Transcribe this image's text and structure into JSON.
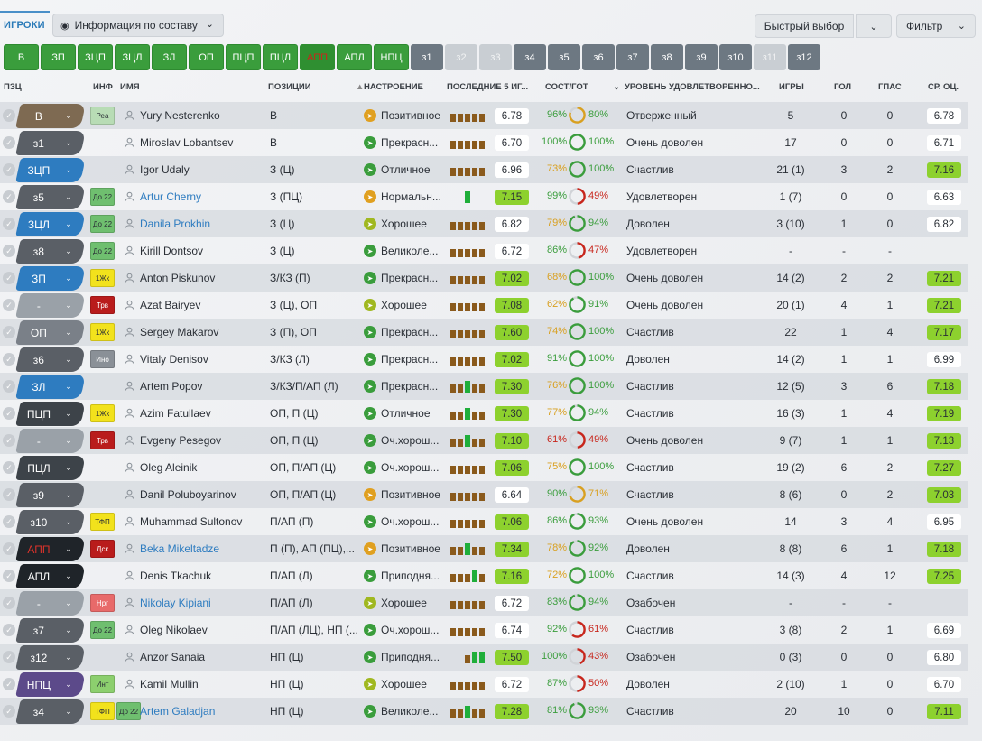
{
  "tabs": {
    "players": "ИГРОКИ",
    "view": "Информация по составу"
  },
  "buttons": {
    "quick_pick": "Быстрый выбор",
    "filter": "Фильтр"
  },
  "chips": [
    "В",
    "ЗП",
    "ЗЦП",
    "ЗЦЛ",
    "ЗЛ",
    "ОП",
    "ПЦП",
    "ПЦЛ",
    "АПП",
    "АПЛ",
    "НПЦ",
    "з1",
    "з2",
    "з3",
    "з4",
    "з5",
    "з6",
    "з7",
    "з8",
    "з9",
    "з10",
    "з11",
    "з12"
  ],
  "chip_styles": [
    "green",
    "green",
    "green",
    "green",
    "green",
    "green",
    "green",
    "green",
    "red",
    "green",
    "green",
    "gray",
    "light",
    "light",
    "gray",
    "gray",
    "gray",
    "gray",
    "gray",
    "gray",
    "gray",
    "light",
    "gray"
  ],
  "headers": {
    "pzc": "ПЗЦ",
    "inf": "ИНФ",
    "name": "ИМЯ",
    "positions": "ПОЗИЦИИ",
    "mood": "НАСТРОЕНИЕ",
    "last5": "ПОСЛЕДНИЕ 5 ИГ...",
    "condition": "СОСТ/ГОТ",
    "satisfaction": "УРОВЕНЬ УДОВЛЕТВОРЕННО...",
    "games": "ИГРЫ",
    "goals": "ГОЛ",
    "assists": "ГПАС",
    "avg": "СР. ОЦ."
  },
  "players": [
    {
      "slot": "В",
      "slot_color": "#7e6a52",
      "inf": "Реа",
      "inf_color": "#b8dcb5",
      "name": "Yury Nesterenko",
      "link": false,
      "positions": "В",
      "mood": "Позитивное",
      "mood_color": "#e0a020",
      "form": "6.78",
      "form_bg": "#ffffff",
      "form_bars": [
        3,
        3,
        3,
        3,
        3
      ],
      "cond": "96%",
      "cond_color": "#3a9d3c",
      "fit": "80%",
      "fit_color": "#3a9d3c",
      "fit_pct": 0.8,
      "sat": "Отверженный",
      "games": "5",
      "goals": "0",
      "ast": "0",
      "avg": "6.78",
      "avg_bg": "#ffffff"
    },
    {
      "slot": "з1",
      "slot_color": "#5a5f66",
      "inf": "",
      "inf_color": "",
      "name": "Miroslav Lobantsev",
      "link": false,
      "positions": "В",
      "mood": "Прекрасн...",
      "mood_color": "#3a9d3c",
      "form": "6.70",
      "form_bg": "#ffffff",
      "form_bars": [
        3,
        3,
        3,
        3,
        3
      ],
      "cond": "100%",
      "cond_color": "#3a9d3c",
      "fit": "100%",
      "fit_color": "#3a9d3c",
      "fit_pct": 1.0,
      "sat": "Очень доволен",
      "games": "17",
      "goals": "0",
      "ast": "0",
      "avg": "6.71",
      "avg_bg": "#ffffff"
    },
    {
      "slot": "ЗЦП",
      "slot_color": "#2e7cc0",
      "inf": "",
      "inf_color": "",
      "name": "Igor Udaly",
      "link": false,
      "positions": "З (Ц)",
      "mood": "Отличное",
      "mood_color": "#3a9d3c",
      "form": "6.96",
      "form_bg": "#ffffff",
      "form_bars": [
        3,
        3,
        3,
        3,
        3
      ],
      "cond": "73%",
      "cond_color": "#d9a020",
      "fit": "100%",
      "fit_color": "#3a9d3c",
      "fit_pct": 1.0,
      "sat": "Счастлив",
      "games": "21 (1)",
      "goals": "3",
      "ast": "2",
      "avg": "7.16",
      "avg_bg": "#8dd12e"
    },
    {
      "slot": "з5",
      "slot_color": "#5a5f66",
      "inf": "До 22",
      "inf_color": "#6fbf6f",
      "name": "Artur Cherny",
      "link": true,
      "positions": "З (ПЦ)",
      "mood": "Нормальн...",
      "mood_color": "#e0a020",
      "form": "7.15",
      "form_bg": "#8dd12e",
      "form_bars": [
        0,
        0,
        4,
        0,
        0
      ],
      "cond": "99%",
      "cond_color": "#3a9d3c",
      "fit": "49%",
      "fit_color": "#c8261c",
      "fit_pct": 0.49,
      "sat": "Удовлетворен",
      "games": "1 (7)",
      "goals": "0",
      "ast": "0",
      "avg": "6.63",
      "avg_bg": "#ffffff"
    },
    {
      "slot": "ЗЦЛ",
      "slot_color": "#2e7cc0",
      "inf": "До 22",
      "inf_color": "#6fbf6f",
      "name": "Danila Prokhin",
      "link": true,
      "positions": "З (Ц)",
      "mood": "Хорошее",
      "mood_color": "#a0b820",
      "form": "6.82",
      "form_bg": "#ffffff",
      "form_bars": [
        3,
        3,
        3,
        3,
        3
      ],
      "cond": "79%",
      "cond_color": "#d9a020",
      "fit": "94%",
      "fit_color": "#3a9d3c",
      "fit_pct": 0.94,
      "sat": "Доволен",
      "games": "3 (10)",
      "goals": "1",
      "ast": "0",
      "avg": "6.82",
      "avg_bg": "#ffffff"
    },
    {
      "slot": "з8",
      "slot_color": "#5a5f66",
      "inf": "До 22",
      "inf_color": "#6fbf6f",
      "name": "Kirill Dontsov",
      "link": false,
      "positions": "З (Ц)",
      "mood": "Великоле...",
      "mood_color": "#3a9d3c",
      "form": "6.72",
      "form_bg": "#ffffff",
      "form_bars": [
        3,
        3,
        3,
        3,
        3
      ],
      "cond": "86%",
      "cond_color": "#3a9d3c",
      "fit": "47%",
      "fit_color": "#c8261c",
      "fit_pct": 0.47,
      "sat": "Удовлетворен",
      "games": "-",
      "goals": "-",
      "ast": "-",
      "avg": "",
      "avg_bg": ""
    },
    {
      "slot": "ЗП",
      "slot_color": "#2e7cc0",
      "inf": "1Жк",
      "inf_color": "#f2e21c",
      "name": "Anton Piskunov",
      "link": false,
      "positions": "З/КЗ (П)",
      "mood": "Прекрасн...",
      "mood_color": "#3a9d3c",
      "form": "7.02",
      "form_bg": "#8dd12e",
      "form_bars": [
        3,
        3,
        3,
        3,
        3
      ],
      "cond": "68%",
      "cond_color": "#d9a020",
      "fit": "100%",
      "fit_color": "#3a9d3c",
      "fit_pct": 1.0,
      "sat": "Очень доволен",
      "games": "14 (2)",
      "goals": "2",
      "ast": "2",
      "avg": "7.21",
      "avg_bg": "#8dd12e"
    },
    {
      "slot": "-",
      "slot_color": "#9aa1a8",
      "inf": "Трв",
      "inf_color": "#b91c1c",
      "name": "Azat Bairyev",
      "link": false,
      "positions": "З (Ц), ОП",
      "mood": "Хорошее",
      "mood_color": "#a0b820",
      "form": "7.08",
      "form_bg": "#8dd12e",
      "form_bars": [
        3,
        3,
        3,
        3,
        3
      ],
      "cond": "62%",
      "cond_color": "#d9a020",
      "fit": "91%",
      "fit_color": "#3a9d3c",
      "fit_pct": 0.91,
      "sat": "Очень доволен",
      "games": "20 (1)",
      "goals": "4",
      "ast": "1",
      "avg": "7.21",
      "avg_bg": "#8dd12e"
    },
    {
      "slot": "ОП",
      "slot_color": "#7a8088",
      "inf": "1Жк",
      "inf_color": "#f2e21c",
      "name": "Sergey Makarov",
      "link": false,
      "positions": "З (П), ОП",
      "mood": "Прекрасн...",
      "mood_color": "#3a9d3c",
      "form": "7.60",
      "form_bg": "#8dd12e",
      "form_bars": [
        3,
        3,
        3,
        3,
        3
      ],
      "cond": "74%",
      "cond_color": "#d9a020",
      "fit": "100%",
      "fit_color": "#3a9d3c",
      "fit_pct": 1.0,
      "sat": "Счастлив",
      "games": "22",
      "goals": "1",
      "ast": "4",
      "avg": "7.17",
      "avg_bg": "#8dd12e"
    },
    {
      "slot": "з6",
      "slot_color": "#5a5f66",
      "inf": "Ино",
      "inf_color": "#8a9097",
      "name": "Vitaly Denisov",
      "link": false,
      "positions": "З/КЗ (Л)",
      "mood": "Прекрасн...",
      "mood_color": "#3a9d3c",
      "form": "7.02",
      "form_bg": "#8dd12e",
      "form_bars": [
        3,
        3,
        3,
        3,
        3
      ],
      "cond": "91%",
      "cond_color": "#3a9d3c",
      "fit": "100%",
      "fit_color": "#3a9d3c",
      "fit_pct": 1.0,
      "sat": "Доволен",
      "games": "14 (2)",
      "goals": "1",
      "ast": "1",
      "avg": "6.99",
      "avg_bg": "#ffffff"
    },
    {
      "slot": "ЗЛ",
      "slot_color": "#2e7cc0",
      "inf": "",
      "inf_color": "",
      "name": "Artem Popov",
      "link": false,
      "positions": "З/КЗ/П/АП (Л)",
      "mood": "Прекрасн...",
      "mood_color": "#3a9d3c",
      "form": "7.30",
      "form_bg": "#8dd12e",
      "form_bars": [
        3,
        3,
        4,
        3,
        3
      ],
      "cond": "76%",
      "cond_color": "#d9a020",
      "fit": "100%",
      "fit_color": "#3a9d3c",
      "fit_pct": 1.0,
      "sat": "Счастлив",
      "games": "12 (5)",
      "goals": "3",
      "ast": "6",
      "avg": "7.18",
      "avg_bg": "#8dd12e"
    },
    {
      "slot": "ПЦП",
      "slot_color": "#3d4349",
      "inf": "1Жк",
      "inf_color": "#f2e21c",
      "name": "Azim Fatullaev",
      "link": false,
      "positions": "ОП, П (Ц)",
      "mood": "Отличное",
      "mood_color": "#3a9d3c",
      "form": "7.30",
      "form_bg": "#8dd12e",
      "form_bars": [
        3,
        3,
        4,
        3,
        3
      ],
      "cond": "77%",
      "cond_color": "#d9a020",
      "fit": "94%",
      "fit_color": "#3a9d3c",
      "fit_pct": 0.94,
      "sat": "Счастлив",
      "games": "16 (3)",
      "goals": "1",
      "ast": "4",
      "avg": "7.19",
      "avg_bg": "#8dd12e"
    },
    {
      "slot": "-",
      "slot_color": "#9aa1a8",
      "inf": "Трв",
      "inf_color": "#b91c1c",
      "name": "Evgeny Pesegov",
      "link": false,
      "positions": "ОП, П (Ц)",
      "mood": "Оч.хорош...",
      "mood_color": "#3a9d3c",
      "form": "7.10",
      "form_bg": "#8dd12e",
      "form_bars": [
        3,
        3,
        4,
        3,
        3
      ],
      "cond": "61%",
      "cond_color": "#c8261c",
      "fit": "49%",
      "fit_color": "#c8261c",
      "fit_pct": 0.49,
      "sat": "Очень доволен",
      "games": "9 (7)",
      "goals": "1",
      "ast": "1",
      "avg": "7.13",
      "avg_bg": "#8dd12e"
    },
    {
      "slot": "ПЦЛ",
      "slot_color": "#3d4349",
      "inf": "",
      "inf_color": "",
      "name": "Oleg Aleinik",
      "link": false,
      "positions": "ОП, П/АП (Ц)",
      "mood": "Оч.хорош...",
      "mood_color": "#3a9d3c",
      "form": "7.06",
      "form_bg": "#8dd12e",
      "form_bars": [
        3,
        3,
        3,
        3,
        3
      ],
      "cond": "75%",
      "cond_color": "#d9a020",
      "fit": "100%",
      "fit_color": "#3a9d3c",
      "fit_pct": 1.0,
      "sat": "Счастлив",
      "games": "19 (2)",
      "goals": "6",
      "ast": "2",
      "avg": "7.27",
      "avg_bg": "#8dd12e"
    },
    {
      "slot": "з9",
      "slot_color": "#5a5f66",
      "inf": "",
      "inf_color": "",
      "name": "Danil Poluboyarinov",
      "link": false,
      "positions": "ОП, П/АП (Ц)",
      "mood": "Позитивное",
      "mood_color": "#e0a020",
      "form": "6.64",
      "form_bg": "#ffffff",
      "form_bars": [
        3,
        3,
        3,
        3,
        3
      ],
      "cond": "90%",
      "cond_color": "#3a9d3c",
      "fit": "71%",
      "fit_color": "#d9a020",
      "fit_pct": 0.71,
      "sat": "Счастлив",
      "games": "8 (6)",
      "goals": "0",
      "ast": "2",
      "avg": "7.03",
      "avg_bg": "#8dd12e"
    },
    {
      "slot": "з10",
      "slot_color": "#5a5f66",
      "inf": "ТФП",
      "inf_color": "#f2e21c",
      "name": "Muhammad Sultonov",
      "link": false,
      "positions": "П/АП (П)",
      "mood": "Оч.хорош...",
      "mood_color": "#3a9d3c",
      "form": "7.06",
      "form_bg": "#8dd12e",
      "form_bars": [
        3,
        3,
        3,
        3,
        3
      ],
      "cond": "86%",
      "cond_color": "#3a9d3c",
      "fit": "93%",
      "fit_color": "#3a9d3c",
      "fit_pct": 0.93,
      "sat": "Очень доволен",
      "games": "14",
      "goals": "3",
      "ast": "4",
      "avg": "6.95",
      "avg_bg": "#ffffff"
    },
    {
      "slot": "АПП",
      "slot_color": "#1f2429",
      "slot_text": "#d8322a",
      "inf": "Дск",
      "inf_color": "#b91c1c",
      "name": "Beka Mikeltadze",
      "link": true,
      "positions": "П (П), АП (ПЦ),...",
      "mood": "Позитивное",
      "mood_color": "#e0a020",
      "form": "7.34",
      "form_bg": "#8dd12e",
      "form_bars": [
        3,
        3,
        4,
        3,
        3
      ],
      "cond": "78%",
      "cond_color": "#d9a020",
      "fit": "92%",
      "fit_color": "#3a9d3c",
      "fit_pct": 0.92,
      "sat": "Доволен",
      "games": "8 (8)",
      "goals": "6",
      "ast": "1",
      "avg": "7.18",
      "avg_bg": "#8dd12e"
    },
    {
      "slot": "АПЛ",
      "slot_color": "#1f2429",
      "inf": "",
      "inf_color": "",
      "name": "Denis Tkachuk",
      "link": false,
      "positions": "П/АП (Л)",
      "mood": "Приподня...",
      "mood_color": "#3a9d3c",
      "form": "7.16",
      "form_bg": "#8dd12e",
      "form_bars": [
        3,
        3,
        3,
        4,
        3
      ],
      "cond": "72%",
      "cond_color": "#d9a020",
      "fit": "100%",
      "fit_color": "#3a9d3c",
      "fit_pct": 1.0,
      "sat": "Счастлив",
      "games": "14 (3)",
      "goals": "4",
      "ast": "12",
      "avg": "7.25",
      "avg_bg": "#8dd12e"
    },
    {
      "slot": "-",
      "slot_color": "#9aa1a8",
      "inf": "Нрг",
      "inf_color": "#e86a6a",
      "name": "Nikolay Kipiani",
      "link": true,
      "positions": "П/АП (Л)",
      "mood": "Хорошее",
      "mood_color": "#a0b820",
      "form": "6.72",
      "form_bg": "#ffffff",
      "form_bars": [
        3,
        3,
        3,
        3,
        3
      ],
      "cond": "83%",
      "cond_color": "#3a9d3c",
      "fit": "94%",
      "fit_color": "#3a9d3c",
      "fit_pct": 0.94,
      "sat": "Озабочен",
      "games": "-",
      "goals": "-",
      "ast": "-",
      "avg": "",
      "avg_bg": ""
    },
    {
      "slot": "з7",
      "slot_color": "#5a5f66",
      "inf": "До 22",
      "inf_color": "#6fbf6f",
      "name": "Oleg Nikolaev",
      "link": false,
      "positions": "П/АП (ЛЦ), НП (...",
      "mood": "Оч.хорош...",
      "mood_color": "#3a9d3c",
      "form": "6.74",
      "form_bg": "#ffffff",
      "form_bars": [
        3,
        3,
        3,
        3,
        3
      ],
      "cond": "92%",
      "cond_color": "#3a9d3c",
      "fit": "61%",
      "fit_color": "#c8261c",
      "fit_pct": 0.61,
      "sat": "Счастлив",
      "games": "3 (8)",
      "goals": "2",
      "ast": "1",
      "avg": "6.69",
      "avg_bg": "#ffffff"
    },
    {
      "slot": "з12",
      "slot_color": "#5a5f66",
      "inf": "",
      "inf_color": "",
      "name": "Anzor Sanaia",
      "link": false,
      "positions": "НП (Ц)",
      "mood": "Приподня...",
      "mood_color": "#3a9d3c",
      "form": "7.50",
      "form_bg": "#8dd12e",
      "form_bars": [
        0,
        0,
        3,
        4,
        4
      ],
      "cond": "100%",
      "cond_color": "#3a9d3c",
      "fit": "43%",
      "fit_color": "#c8261c",
      "fit_pct": 0.43,
      "sat": "Озабочен",
      "games": "0 (3)",
      "goals": "0",
      "ast": "0",
      "avg": "6.80",
      "avg_bg": "#ffffff"
    },
    {
      "slot": "НПЦ",
      "slot_color": "#5c4a8a",
      "inf": "Инт",
      "inf_color": "#8ccf6e",
      "name": "Kamil Mullin",
      "link": false,
      "positions": "НП (Ц)",
      "mood": "Хорошее",
      "mood_color": "#a0b820",
      "form": "6.72",
      "form_bg": "#ffffff",
      "form_bars": [
        3,
        3,
        3,
        3,
        3
      ],
      "cond": "87%",
      "cond_color": "#3a9d3c",
      "fit": "50%",
      "fit_color": "#c8261c",
      "fit_pct": 0.5,
      "sat": "Доволен",
      "games": "2 (10)",
      "goals": "1",
      "ast": "0",
      "avg": "6.70",
      "avg_bg": "#ffffff"
    },
    {
      "slot": "з4",
      "slot_color": "#5a5f66",
      "inf": "ТФП",
      "inf_color": "#f2e21c",
      "inf2": "До 22",
      "name": "Artem Galadjan",
      "link": true,
      "positions": "НП (Ц)",
      "mood": "Великоле...",
      "mood_color": "#3a9d3c",
      "form": "7.28",
      "form_bg": "#8dd12e",
      "form_bars": [
        3,
        3,
        4,
        3,
        3
      ],
      "cond": "81%",
      "cond_color": "#3a9d3c",
      "fit": "93%",
      "fit_color": "#3a9d3c",
      "fit_pct": 0.93,
      "sat": "Счастлив",
      "games": "20",
      "goals": "10",
      "ast": "0",
      "avg": "7.11",
      "avg_bg": "#8dd12e"
    }
  ]
}
